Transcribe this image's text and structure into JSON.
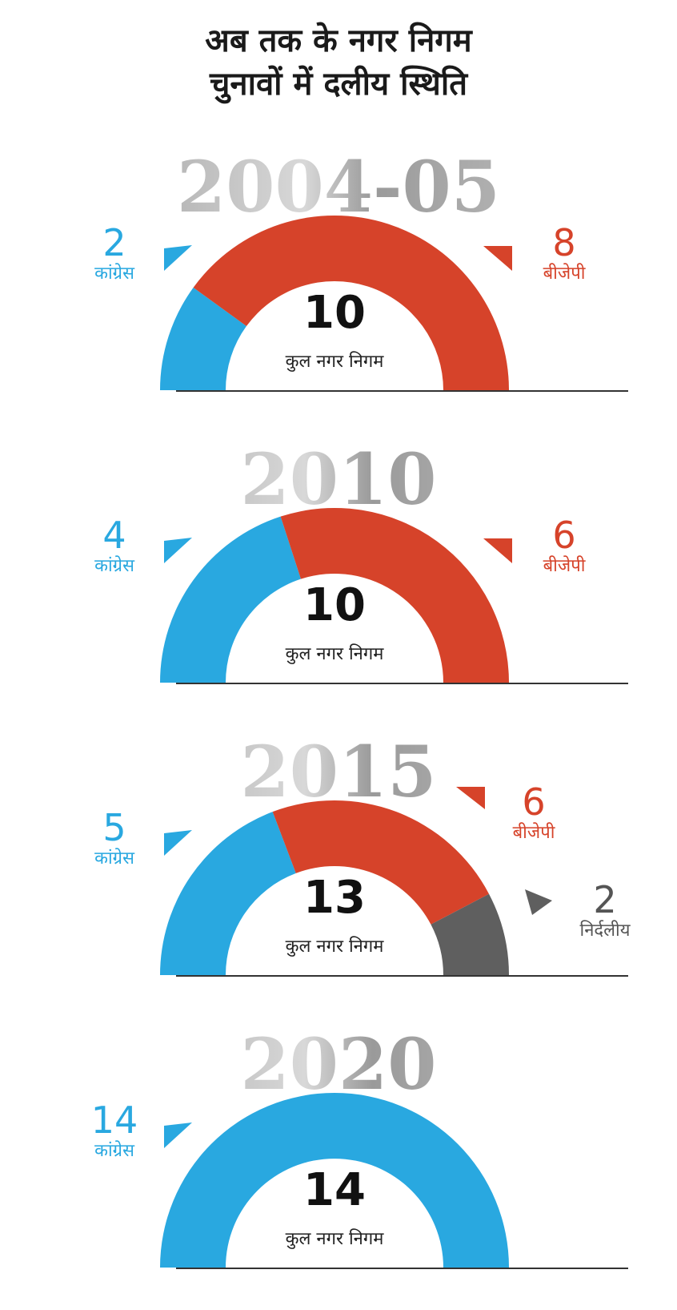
{
  "title_lines": [
    "अब तक के नगर निगम",
    "चुनावों में दलीय स्थिति"
  ],
  "colors": {
    "congress": "#29a8e0",
    "bjp": "#d6432a",
    "independent": "#5f5f5f",
    "baseline": "#333333"
  },
  "chart_data": [
    {
      "type": "pie",
      "year": "2004-05",
      "total": 10,
      "total_label": "कुल नगर निगम",
      "slices": [
        {
          "party": "कांग्रेस",
          "value": 2,
          "key": "congress"
        },
        {
          "party": "बीजेपी",
          "value": 8,
          "key": "bjp"
        }
      ]
    },
    {
      "type": "pie",
      "year": "2010",
      "total": 10,
      "total_label": "कुल नगर निगम",
      "slices": [
        {
          "party": "कांग्रेस",
          "value": 4,
          "key": "congress"
        },
        {
          "party": "बीजेपी",
          "value": 6,
          "key": "bjp"
        }
      ]
    },
    {
      "type": "pie",
      "year": "2015",
      "total": 13,
      "total_label": "कुल नगर निगम",
      "slices": [
        {
          "party": "कांग्रेस",
          "value": 5,
          "key": "congress"
        },
        {
          "party": "बीजेपी",
          "value": 6,
          "key": "bjp"
        },
        {
          "party": "निर्दलीय",
          "value": 2,
          "key": "independent"
        }
      ]
    },
    {
      "type": "pie",
      "year": "2020",
      "total": 14,
      "total_label": "कुल नगर निगम",
      "slices": [
        {
          "party": "कांग्रेस",
          "value": 14,
          "key": "congress"
        }
      ]
    }
  ]
}
